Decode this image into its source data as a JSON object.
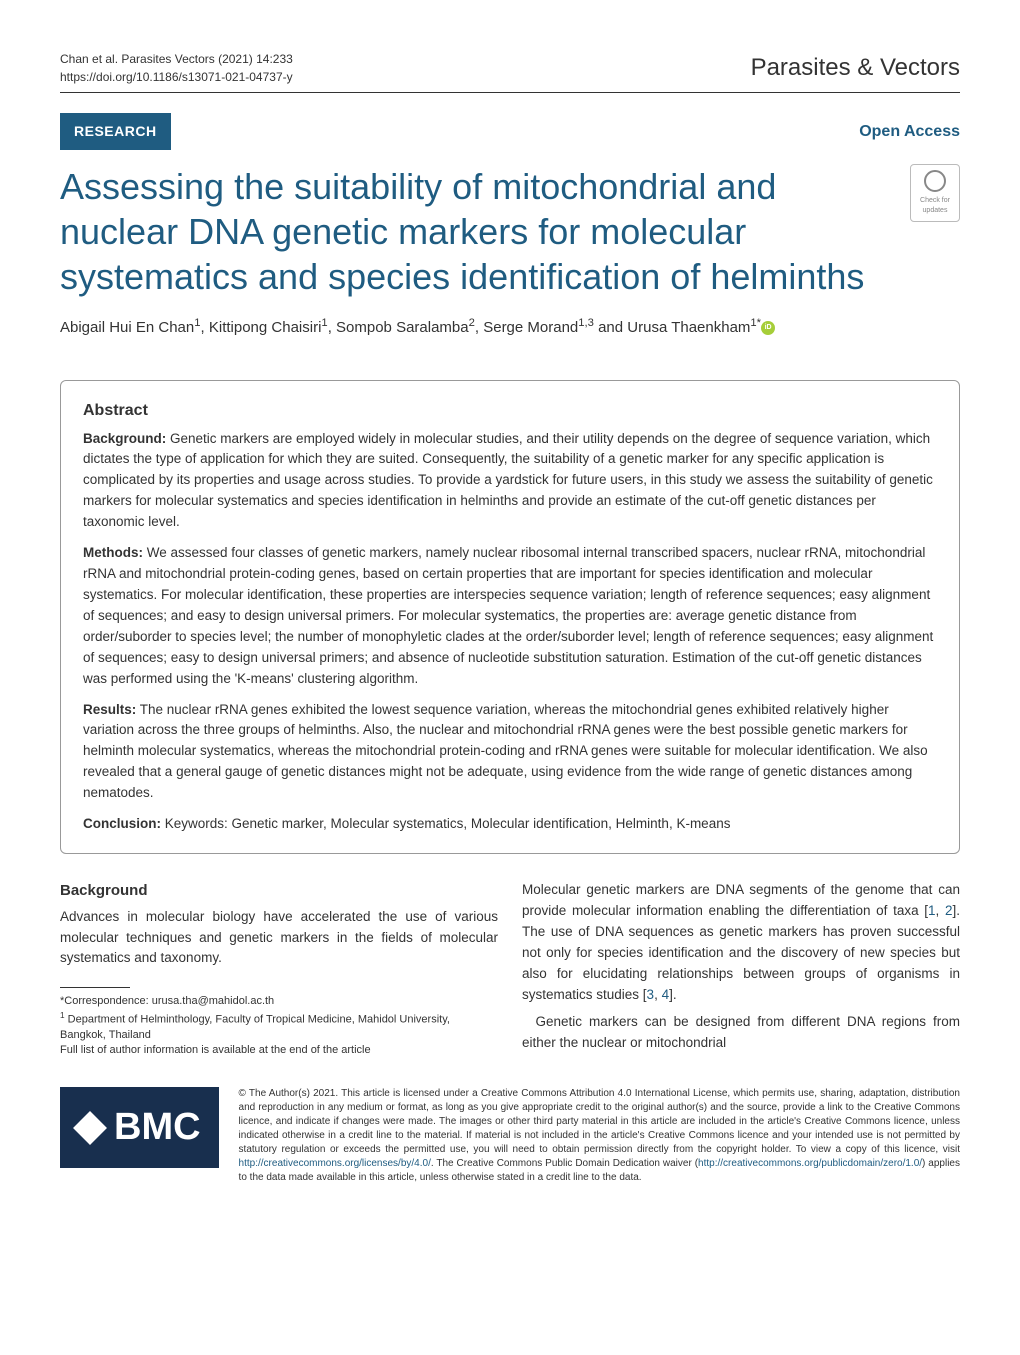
{
  "header": {
    "citation_line1": "Chan et al. Parasites Vectors     (2021) 14:233",
    "citation_line2": "https://doi.org/10.1186/s13071-021-04737-y",
    "journal": "Parasites & Vectors"
  },
  "article_meta": {
    "type_badge": "RESEARCH",
    "open_access": "Open Access",
    "crossmark_label": "Check for updates"
  },
  "title": "Assessing the suitability of mitochondrial and nuclear DNA genetic markers for molecular systematics and species identification of helminths",
  "authors": {
    "a1": "Abigail Hui En Chan",
    "s1": "1",
    "a2": "Kittipong Chaisiri",
    "s2": "1",
    "a3": "Sompob Saralamba",
    "s3": "2",
    "a4": "Serge Morand",
    "s4": "1,3",
    "and": " and ",
    "a5": "Urusa Thaenkham",
    "s5": "1*"
  },
  "abstract": {
    "heading": "Abstract",
    "background_label": "Background:",
    "background_text": "  Genetic markers are employed widely in molecular studies, and their utility depends on the degree of sequence variation, which dictates the type of application for which they are suited. Consequently, the suitability of a genetic marker for any specific application is complicated by its properties and usage across studies. To provide a yardstick for future users, in this study we assess the suitability of genetic markers for molecular systematics and species identification in helminths and provide an estimate of the cut-off genetic distances per taxonomic level.",
    "methods_label": "Methods:",
    "methods_text": "  We assessed four classes of genetic markers, namely nuclear ribosomal internal transcribed spacers, nuclear rRNA, mitochondrial rRNA and mitochondrial protein-coding genes, based on certain properties that are important for species identification and molecular systematics. For molecular identification, these properties are interspecies sequence variation; length of reference sequences; easy alignment of sequences; and easy to design universal primers. For molecular systematics, the properties are: average genetic distance from order/suborder to species level; the number of monophyletic clades at the order/suborder level; length of reference sequences; easy alignment of sequences; easy to design universal primers; and absence of nucleotide substitution saturation. Estimation of the cut-off genetic distances was performed using the 'K-means' clustering algorithm.",
    "results_label": "Results:",
    "results_text": "  The nuclear rRNA genes exhibited the lowest sequence variation, whereas the mitochondrial genes exhibited relatively higher variation across the three groups of helminths. Also, the nuclear and mitochondrial rRNA genes were the best possible genetic markers for helminth molecular systematics, whereas the mitochondrial protein-coding and rRNA genes were suitable for molecular identification. We also revealed that a general gauge of genetic distances might not be adequate, using evidence from the wide range of genetic distances among nematodes.",
    "conclusion_label": "Conclusion:",
    "conclusion_text": "  Keywords:  Genetic marker, Molecular systematics, Molecular identification, Helminth, K-means"
  },
  "body": {
    "background_heading": "Background",
    "left_p1": "Advances in molecular biology have accelerated the use of various molecular techniques and genetic markers in the fields of molecular systematics and taxonomy.",
    "right_p1_a": "Molecular genetic markers are DNA segments of the genome that can provide molecular information enabling the differentiation of taxa [",
    "right_p1_r1": "1",
    "right_p1_c": ", ",
    "right_p1_r2": "2",
    "right_p1_b": "]. The use of DNA sequences as genetic markers has proven successful not only for species identification and the discovery of new species but also for elucidating relationships between groups of organisms in systematics studies [",
    "right_p1_r3": "3",
    "right_p1_c2": ", ",
    "right_p1_r4": "4",
    "right_p1_d": "].",
    "right_p2": "Genetic markers can be designed from different DNA regions from either the nuclear or mitochondrial"
  },
  "footnotes": {
    "correspondence": "*Correspondence:  urusa.tha@mahidol.ac.th",
    "affiliation": " Department of Helminthology, Faculty of Tropical Medicine, Mahidol University, Bangkok, Thailand",
    "affiliation_sup": "1",
    "full_list": "Full list of author information is available at the end of the article"
  },
  "footer": {
    "bmc": "BMC",
    "license_a": "© The Author(s) 2021. This article is licensed under a Creative Commons Attribution 4.0 International License, which permits use, sharing, adaptation, distribution and reproduction in any medium or format, as long as you give appropriate credit to the original author(s) and the source, provide a link to the Creative Commons licence, and indicate if changes were made. The images or other third party material in this article are included in the article's Creative Commons licence, unless indicated otherwise in a credit line to the material. If material is not included in the article's Creative Commons licence and your intended use is not permitted by statutory regulation or exceeds the permitted use, you will need to obtain permission directly from the copyright holder. To view a copy of this licence, visit ",
    "license_link1": "http://creativecommons.org/licenses/by/4.0/",
    "license_b": ". The Creative Commons Public Domain Dedication waiver (",
    "license_link2": "http://creativecommons.org/publicdomain/zero/1.0/",
    "license_c": ") applies to the data made available in this article, unless otherwise stated in a credit line to the data."
  },
  "colors": {
    "brand_blue": "#1f5c81",
    "bmc_navy": "#182f4e",
    "orcid_green": "#a6ce39"
  }
}
